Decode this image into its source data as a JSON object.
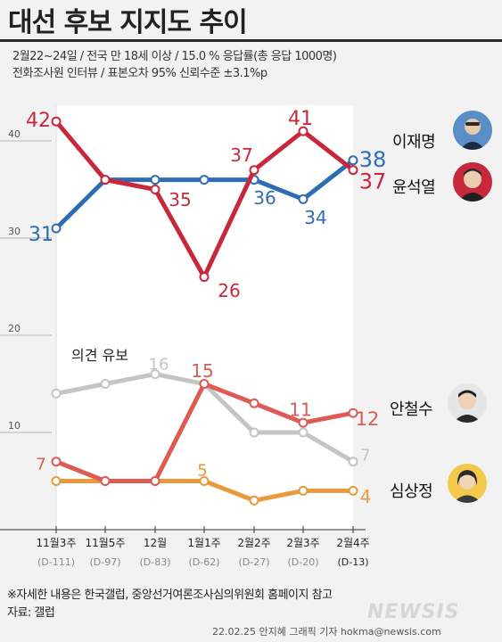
{
  "title": "대선 후보 지지도 추이",
  "subtitle_line1": "2월22~24일 / 전국 만 18세 이상 / 15.0 % 응답률(총 응답 1000명)",
  "subtitle_line2": "전화조사원 인터뷰 / 표본오차 95% 신뢰수준 ±3.1%p",
  "footnote": "※자세한 내용은 한국갤럽, 중앙선거여론조사심의위원회 홈페이지 참고",
  "source": "자료: 갤럽",
  "credit": "22.02.25 안지혜 그래픽 기자 hokma@newsis.com",
  "brand": "NEWSIS",
  "candidates": {
    "lee": "이재명",
    "yoon": "윤석열",
    "ahn": "안철수",
    "sim": "심상정"
  },
  "undecided_label": "의견 유보",
  "chart_data": {
    "type": "line",
    "categories": [
      "11월3주",
      "11월5주",
      "12월",
      "1월1주",
      "2월2주",
      "2월3주",
      "2월4주"
    ],
    "sublabels": [
      "(D-111)",
      "(D-97)",
      "(D-83)",
      "(D-62)",
      "(D-27)",
      "(D-20)",
      "(D-13)"
    ],
    "y_ticks": [
      10,
      20,
      30,
      40
    ],
    "ylim": [
      0,
      45
    ],
    "series": [
      {
        "name": "이재명",
        "color": "#2e6db4",
        "values": [
          31,
          36,
          36,
          36,
          36,
          34,
          38
        ]
      },
      {
        "name": "윤석열",
        "color": "#c8283c",
        "values": [
          42,
          36,
          35,
          26,
          37,
          41,
          37
        ]
      },
      {
        "name": "의견 유보",
        "color": "#c4c4c4",
        "values": [
          14,
          15,
          16,
          15,
          10,
          10,
          7
        ]
      },
      {
        "name": "안철수",
        "color": "#dd5a55",
        "values": [
          7,
          5,
          5,
          15,
          13,
          11,
          12
        ]
      },
      {
        "name": "심상정",
        "color": "#e89a3c",
        "values": [
          5,
          5,
          5,
          5,
          3,
          4,
          4
        ]
      }
    ],
    "data_labels": [
      {
        "series": 0,
        "point": 0,
        "text": "31"
      },
      {
        "series": 0,
        "point": 4,
        "text": "36"
      },
      {
        "series": 0,
        "point": 5,
        "text": "34"
      },
      {
        "series": 0,
        "point": 6,
        "text": "38"
      },
      {
        "series": 1,
        "point": 0,
        "text": "42"
      },
      {
        "series": 1,
        "point": 2,
        "text": "35"
      },
      {
        "series": 1,
        "point": 3,
        "text": "26"
      },
      {
        "series": 1,
        "point": 4,
        "text": "37"
      },
      {
        "series": 1,
        "point": 5,
        "text": "41"
      },
      {
        "series": 1,
        "point": 6,
        "text": "37"
      },
      {
        "series": 2,
        "point": 2,
        "text": "16"
      },
      {
        "series": 2,
        "point": 6,
        "text": "7"
      },
      {
        "series": 3,
        "point": 0,
        "text": "7"
      },
      {
        "series": 3,
        "point": 3,
        "text": "15"
      },
      {
        "series": 3,
        "point": 5,
        "text": "11"
      },
      {
        "series": 3,
        "point": 6,
        "text": "12"
      },
      {
        "series": 4,
        "point": 3,
        "text": "5"
      },
      {
        "series": 4,
        "point": 6,
        "text": "4"
      }
    ]
  }
}
